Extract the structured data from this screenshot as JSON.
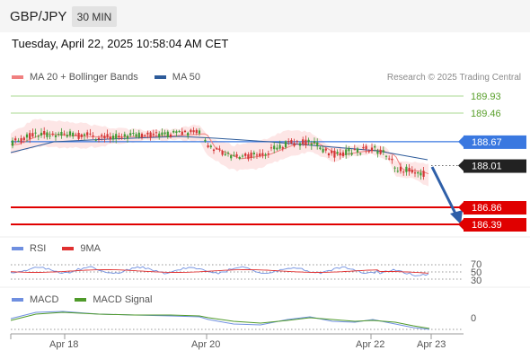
{
  "header": {
    "symbol": "GBP/JPY",
    "timeframe": "30 MIN",
    "datetime": "Tuesday, April 22, 2025 10:58:04 AM CET"
  },
  "legend": {
    "ma20": "MA 20 + Bollinger Bands",
    "ma50": "MA 50",
    "credit": "Research © 2025 Trading Central"
  },
  "levels": [
    {
      "value": "189.93",
      "kind": "resistance-2",
      "color": "#5aa02c"
    },
    {
      "value": "189.46",
      "kind": "resistance-1",
      "color": "#5aa02c"
    },
    {
      "value": "188.67",
      "kind": "pivot",
      "color": "#3a78e0"
    },
    {
      "value": "188.01",
      "kind": "last-price",
      "color": "#222222"
    },
    {
      "value": "186.86",
      "kind": "support-1",
      "color": "#e00000"
    },
    {
      "value": "186.39",
      "kind": "support-2",
      "color": "#e00000"
    }
  ],
  "rsi": {
    "label": "RSI",
    "ma_label": "9MA",
    "ticks": [
      "70",
      "50",
      "30"
    ]
  },
  "macd": {
    "label": "MACD",
    "signal_label": "MACD Signal",
    "zero": "0"
  },
  "xaxis": [
    "Apr 18",
    "Apr 20",
    "Apr 22",
    "Apr 23"
  ],
  "colors": {
    "up": "#3f9a36",
    "down": "#d33535",
    "ma20": "#f08080",
    "ma50": "#2d5b9a",
    "band": "#fde3e3",
    "rsi": "#6f8fe0",
    "rsi_ma": "#e03030",
    "macd": "#6f8fe0",
    "macd_signal": "#4f9a2a",
    "arrow": "#2f5fa8"
  }
}
